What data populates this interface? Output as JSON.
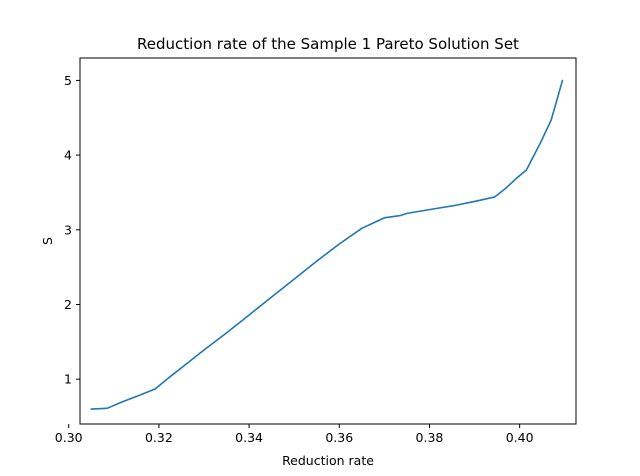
{
  "chart_data": {
    "type": "line",
    "title": "Reduction rate of the Sample 1 Pareto Solution Set",
    "xlabel": "Reduction rate",
    "ylabel": "S",
    "xlim": [
      0.3025,
      0.4125
    ],
    "ylim": [
      0.4,
      5.3
    ],
    "xticks": [
      "0.30",
      "0.32",
      "0.34",
      "0.36",
      "0.38",
      "0.40"
    ],
    "xtick_values": [
      0.3,
      0.32,
      0.34,
      0.36,
      0.38,
      0.4
    ],
    "yticks": [
      "1",
      "2",
      "3",
      "4",
      "5"
    ],
    "ytick_values": [
      1,
      2,
      3,
      4,
      5
    ],
    "grid": false,
    "color": "#1f77b4",
    "series": [
      {
        "x": [
          0.305,
          0.3085,
          0.312,
          0.3155,
          0.3192,
          0.322,
          0.326,
          0.33,
          0.335,
          0.34,
          0.345,
          0.35,
          0.355,
          0.36,
          0.365,
          0.37,
          0.3735,
          0.375,
          0.378,
          0.382,
          0.386,
          0.39,
          0.3945,
          0.397,
          0.3995,
          0.4015,
          0.4045,
          0.407,
          0.4095
        ],
        "y": [
          0.6,
          0.61,
          0.7,
          0.78,
          0.87,
          1.01,
          1.2,
          1.39,
          1.62,
          1.86,
          2.1,
          2.34,
          2.58,
          2.81,
          3.02,
          3.16,
          3.19,
          3.22,
          3.25,
          3.29,
          3.33,
          3.38,
          3.44,
          3.56,
          3.7,
          3.8,
          4.15,
          4.47,
          5.0
        ]
      }
    ]
  }
}
